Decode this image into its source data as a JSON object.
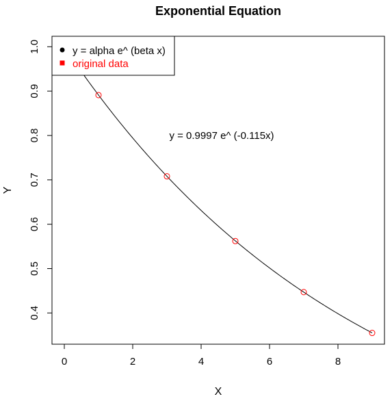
{
  "chart_data": {
    "type": "scatter",
    "title": "Exponential Equation",
    "xlabel": "X",
    "ylabel": "Y",
    "xlim": [
      -0.36,
      9.36
    ],
    "ylim": [
      0.3296,
      1.0236
    ],
    "xticks": [
      0,
      2,
      4,
      6,
      8
    ],
    "yticks": [
      0.4,
      0.5,
      0.6,
      0.7,
      0.8,
      0.9,
      1.0
    ],
    "grid": false,
    "legend_position": "top-left",
    "series": [
      {
        "name": "original data",
        "kind": "points",
        "marker": "open-circle",
        "color": "#ff0000",
        "x": [
          1,
          3,
          5,
          7,
          9
        ],
        "y": [
          0.891,
          0.708,
          0.562,
          0.447,
          0.355
        ]
      },
      {
        "name": "y = alpha e^ (beta x)",
        "kind": "fitted-curve",
        "color": "#000000",
        "alpha": 0.9997,
        "beta": -0.115,
        "x_range": [
          0,
          9
        ]
      }
    ],
    "legend": {
      "entries": [
        {
          "label": "y = alpha e^ (beta x)",
          "color": "#000000",
          "symbol": "dot"
        },
        {
          "label": "original data",
          "color": "#ff0000",
          "symbol": "square"
        }
      ]
    },
    "annotations": [
      {
        "text": "y = 0.9997 e^ (-0.115x)",
        "x": 4.6,
        "y": 0.8
      }
    ]
  }
}
